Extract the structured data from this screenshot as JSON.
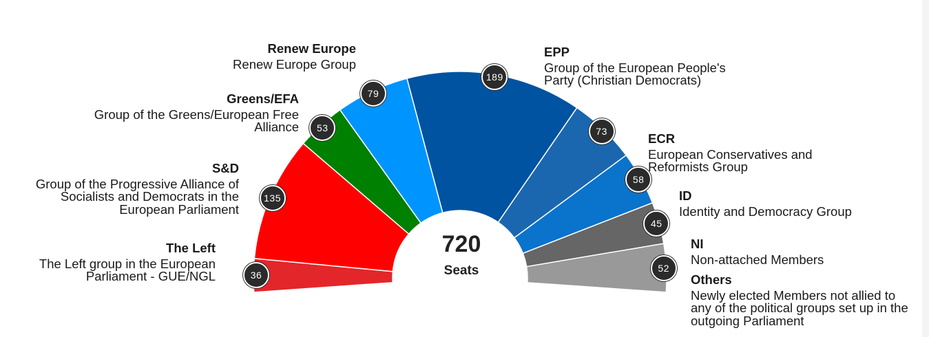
{
  "chart_data": {
    "type": "hemicycle",
    "total_seats": "720",
    "total_caption": "Seats",
    "groups": [
      {
        "key": "left",
        "short": "The Left",
        "full": "The Left group in the European Parliament - GUE/NGL",
        "seats": 36,
        "color": "#e3262a",
        "side": "left"
      },
      {
        "key": "sd",
        "short": "S&D",
        "full": "Group of the Progressive Alliance of Socialists and Democrats in the European Parliament",
        "seats": 135,
        "color": "#ff0000",
        "side": "left"
      },
      {
        "key": "greens",
        "short": "Greens/EFA",
        "full": "Group of the Greens/European Free Alliance",
        "seats": 53,
        "color": "#008000",
        "side": "left"
      },
      {
        "key": "renew",
        "short": "Renew Europe",
        "full": "Renew Europe Group",
        "seats": 79,
        "color": "#0094ff",
        "side": "left"
      },
      {
        "key": "epp",
        "short": "EPP",
        "full": "Group of the European People's Party (Christian Democrats)",
        "seats": 189,
        "color": "#0053a0",
        "side": "right"
      },
      {
        "key": "ecr",
        "short": "ECR",
        "full": "European Conservatives and Reformists Group",
        "seats": 73,
        "color": "#1a67b0",
        "side": "right"
      },
      {
        "key": "id",
        "short": "ID",
        "full": "Identity and Democracy Group",
        "seats": 58,
        "color": "#0a73cc",
        "side": "right"
      },
      {
        "key": "ni",
        "short": "NI",
        "full": "Non-attached Members",
        "seats": 45,
        "color": "#666666",
        "side": "right"
      },
      {
        "key": "others",
        "short": "Others",
        "full": "Newly elected Members not allied to any of the political groups set up in the outgoing Parliament",
        "seats": 52,
        "color": "#999999",
        "side": "right"
      }
    ]
  }
}
